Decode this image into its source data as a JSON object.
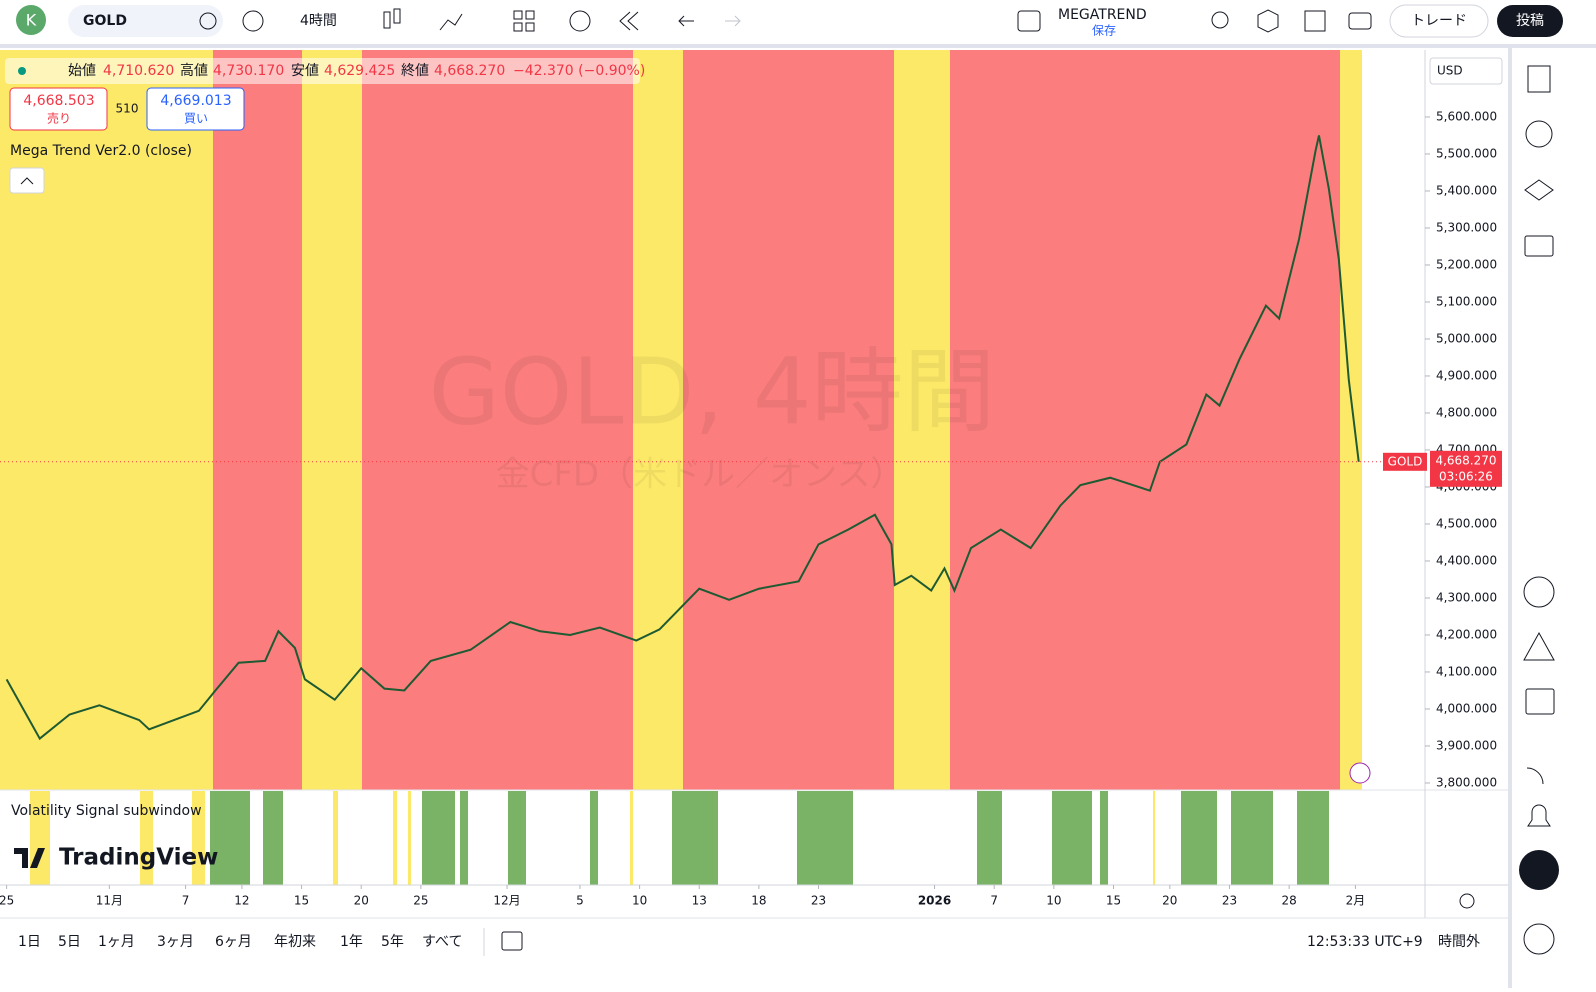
{
  "header": {
    "avatar": "K",
    "symbol": "GOLD",
    "interval": "4時間",
    "layout_name": "MEGATREND",
    "layout_status": "保存",
    "trade_button": "トレード",
    "publish_button": "投稿"
  },
  "legend": {
    "open_label": "始値",
    "open": "4,710.620",
    "high_label": "高値",
    "high": "4,730.170",
    "low_label": "安値",
    "low": "4,629.425",
    "close_label": "終値",
    "close": "4,668.270",
    "change": "−42.370 (−0.90%)",
    "sell_price": "4,668.503",
    "sell_label": "売り",
    "spread": "510",
    "buy_price": "4,669.013",
    "buy_label": "買い",
    "indicator": "Mega Trend Ver2.0 (close)"
  },
  "watermark": {
    "title": "GOLD, 4時間",
    "subtitle": "金CFD（米ドル／オンス）"
  },
  "price_axis": {
    "currency": "USD",
    "last_price": "4,668.270",
    "countdown": "03:06:26"
  },
  "subwindow": {
    "title": "Volatility Signal subwindow",
    "brand": "TradingView"
  },
  "footer": {
    "ranges": [
      "1日",
      "5日",
      "1ヶ月",
      "3ヶ月",
      "6ヶ月",
      "年初来",
      "1年",
      "5年",
      "すべて"
    ],
    "clock": "12:53:33 UTC+9",
    "session": "時間外"
  },
  "chart_data": {
    "type": "line",
    "x": [
      2,
      12,
      21,
      30,
      42,
      45,
      60,
      65,
      72,
      80,
      84,
      89,
      92,
      101,
      109,
      116,
      122,
      130,
      142,
      154,
      163,
      172,
      181,
      192,
      199,
      205,
      211,
      220,
      229,
      241,
      247,
      256,
      264,
      269,
      270,
      275,
      281,
      285,
      288,
      293,
      302,
      311,
      320,
      326,
      335,
      347,
      350,
      358,
      364,
      368,
      374,
      382,
      386,
      392,
      397,
      398,
      401,
      404,
      407,
      410
    ],
    "series": [
      {
        "name": "GOLD",
        "color": "#1e5a32",
        "values": [
          4080,
          3920,
          3985,
          4010,
          3970,
          3945,
          3995,
          4050,
          4125,
          4130,
          4210,
          4165,
          4080,
          4025,
          4110,
          4055,
          4050,
          4130,
          4160,
          4235,
          4210,
          4200,
          4220,
          4185,
          4215,
          4270,
          4325,
          4295,
          4325,
          4345,
          4445,
          4485,
          4525,
          4445,
          4335,
          4360,
          4320,
          4380,
          4320,
          4435,
          4485,
          4435,
          4550,
          4605,
          4625,
          4590,
          4668,
          4715,
          4850,
          4820,
          4945,
          5090,
          5055,
          5270,
          5510,
          5550,
          5405,
          5215,
          4890,
          4668
        ]
      }
    ],
    "xlim": [
      0,
      430
    ],
    "xticks": [
      {
        "value": 2,
        "label": "25"
      },
      {
        "value": 33,
        "label": "11月"
      },
      {
        "value": 56,
        "label": "7"
      },
      {
        "value": 73,
        "label": "12"
      },
      {
        "value": 91,
        "label": "15"
      },
      {
        "value": 109,
        "label": "20"
      },
      {
        "value": 127,
        "label": "25"
      },
      {
        "value": 153,
        "label": "12月"
      },
      {
        "value": 175,
        "label": "5"
      },
      {
        "value": 193,
        "label": "10"
      },
      {
        "value": 211,
        "label": "13"
      },
      {
        "value": 229,
        "label": "18"
      },
      {
        "value": 247,
        "label": "23"
      },
      {
        "value": 282,
        "label": "2026"
      },
      {
        "value": 300,
        "label": "7"
      },
      {
        "value": 318,
        "label": "10"
      },
      {
        "value": 336,
        "label": "15"
      },
      {
        "value": 353,
        "label": "20"
      },
      {
        "value": 371,
        "label": "23"
      },
      {
        "value": 389,
        "label": "28"
      },
      {
        "value": 409,
        "label": "2月"
      }
    ],
    "ylim": [
      3781,
      5781
    ],
    "yticks": [
      {
        "value": 3800,
        "label": "3,800.000"
      },
      {
        "value": 3900,
        "label": "3,900.000"
      },
      {
        "value": 4000,
        "label": "4,000.000"
      },
      {
        "value": 4100,
        "label": "4,100.000"
      },
      {
        "value": 4200,
        "label": "4,200.000"
      },
      {
        "value": 4300,
        "label": "4,300.000"
      },
      {
        "value": 4400,
        "label": "4,400.000"
      },
      {
        "value": 4500,
        "label": "4,500.000"
      },
      {
        "value": 4600,
        "label": "4,600.000"
      },
      {
        "value": 4700,
        "label": "4,700.000"
      },
      {
        "value": 4800,
        "label": "4,800.000"
      },
      {
        "value": 4900,
        "label": "4,900.000"
      },
      {
        "value": 5000,
        "label": "5,000.000"
      },
      {
        "value": 5100,
        "label": "5,100.000"
      },
      {
        "value": 5200,
        "label": "5,200.000"
      },
      {
        "value": 5300,
        "label": "5,300.000"
      },
      {
        "value": 5400,
        "label": "5,400.000"
      },
      {
        "value": 5500,
        "label": "5,500.000"
      },
      {
        "value": 5600,
        "label": "5,600.000"
      }
    ]
  }
}
